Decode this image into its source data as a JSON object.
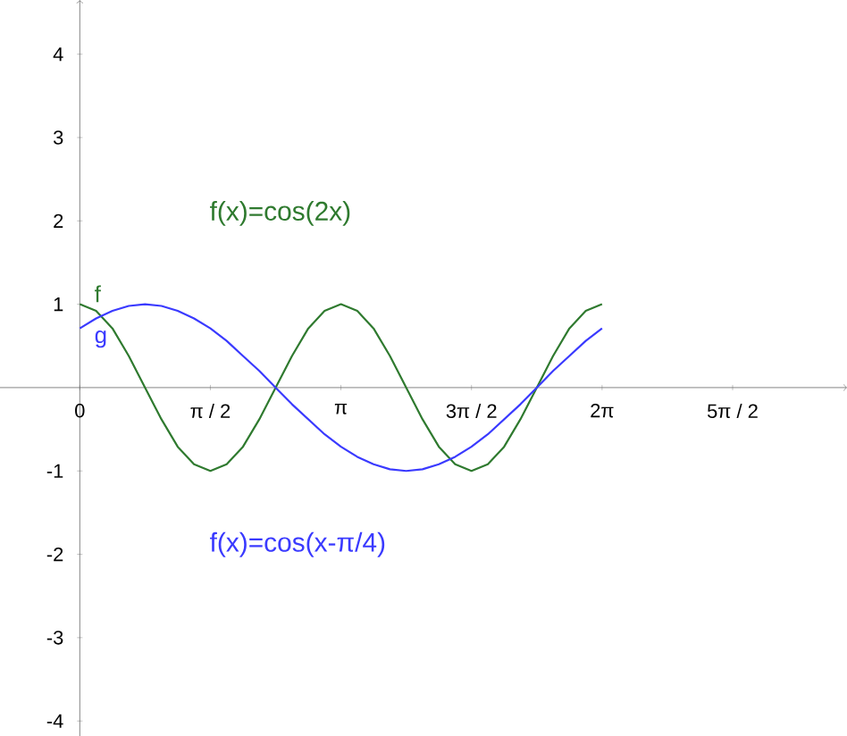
{
  "chart_data": {
    "type": "line",
    "x": [
      0,
      0.196,
      0.393,
      0.589,
      0.785,
      0.982,
      1.178,
      1.374,
      1.571,
      1.767,
      1.963,
      2.16,
      2.356,
      2.553,
      2.749,
      2.945,
      3.142,
      3.338,
      3.534,
      3.731,
      3.927,
      4.123,
      4.32,
      4.516,
      4.712,
      4.909,
      5.105,
      5.301,
      5.498,
      5.694,
      5.89,
      6.087,
      6.283
    ],
    "series": [
      {
        "name": "f",
        "color": "#2f7a2f",
        "values": [
          1,
          0.92,
          0.71,
          0.38,
          0,
          -0.38,
          -0.71,
          -0.92,
          -1,
          -0.92,
          -0.71,
          -0.38,
          0,
          0.38,
          0.71,
          0.92,
          1,
          0.92,
          0.71,
          0.38,
          0,
          -0.38,
          -0.71,
          -0.92,
          -1,
          -0.92,
          -0.71,
          -0.38,
          0,
          0.38,
          0.71,
          0.92,
          1
        ]
      },
      {
        "name": "g",
        "color": "#3a3aff",
        "values": [
          0.71,
          0.83,
          0.92,
          0.98,
          1,
          0.98,
          0.92,
          0.83,
          0.71,
          0.56,
          0.38,
          0.2,
          0,
          -0.2,
          -0.38,
          -0.56,
          -0.71,
          -0.83,
          -0.92,
          -0.98,
          -1,
          -0.98,
          -0.92,
          -0.83,
          -0.71,
          -0.56,
          -0.38,
          -0.2,
          0,
          0.2,
          0.38,
          0.56,
          0.71
        ]
      }
    ],
    "annotations": [
      "f(x)=cos(2x)",
      "f(x)=cos(x-π/4)"
    ],
    "xlim": [
      -0.96,
      9.23
    ],
    "ylim": [
      -4.18,
      4.65
    ],
    "xticks": [
      0,
      {
        "value": 1.5708,
        "label": "π / 2"
      },
      {
        "value": 3.1416,
        "label": "π"
      },
      {
        "value": 4.7124,
        "label": "3π / 2"
      },
      {
        "value": 6.2832,
        "label": "2π"
      },
      {
        "value": 7.854,
        "label": "5π / 2"
      }
    ],
    "yticks": [
      -4,
      -3,
      -2,
      -1,
      1,
      2,
      3,
      4
    ],
    "marker": "none",
    "line_style": "solid"
  }
}
